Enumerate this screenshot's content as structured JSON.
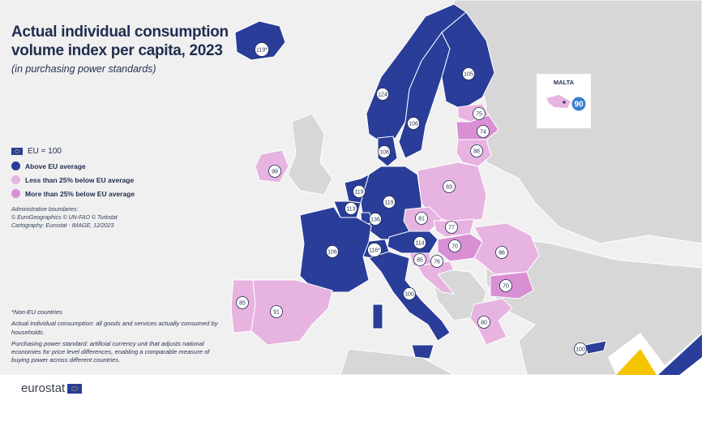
{
  "title_line1": "Actual individual consumption",
  "title_line2": "volume index per capita, 2023",
  "subtitle": "(in purchasing power standards)",
  "legend": {
    "eu_label": "EU = 100",
    "items": [
      {
        "label": "Above EU average",
        "color": "#2a3d99"
      },
      {
        "label": "Less than 25% below EU average",
        "color": "#e7b3e0"
      },
      {
        "label": "More than 25% below EU average",
        "color": "#d98fd4"
      }
    ]
  },
  "credits": {
    "line1": "Administrative boundaries:",
    "line2": "© EuroGeographics © UN-FAO © Turkstat",
    "line3": "Cartography: Eurostat - IMAGE, 12/2023"
  },
  "notes": {
    "n1": "*Non-EU countries",
    "n2": "Actual individual consumption: all goods and services actually consumed by households.",
    "n3": "Purchasing power standard: artificial currency unit that adjusts national economies for price level differences, enabling a comparable measure of buying power across different countries."
  },
  "inset": {
    "label": "MALTA",
    "value": "90"
  },
  "brand": "eurostat",
  "colors": {
    "above": "#2a3d99",
    "below_less": "#e7b3e0",
    "below_more": "#d98fd4",
    "non_eu": "#d7d7d7",
    "sea": "#f0f0f0"
  },
  "countries": [
    {
      "name": "Iceland",
      "value": "119*",
      "class": "above"
    },
    {
      "name": "Norway",
      "value": "124",
      "class": "above"
    },
    {
      "name": "Sweden",
      "value": "106",
      "class": "above"
    },
    {
      "name": "Finland",
      "value": "105",
      "class": "above"
    },
    {
      "name": "Estonia",
      "value": "75",
      "class": "below_less"
    },
    {
      "name": "Latvia",
      "value": "74",
      "class": "below_more"
    },
    {
      "name": "Lithuania",
      "value": "88",
      "class": "below_less"
    },
    {
      "name": "Denmark",
      "value": "108",
      "class": "above"
    },
    {
      "name": "Ireland",
      "value": "99",
      "class": "below_less"
    },
    {
      "name": "Netherlands",
      "value": "119",
      "class": "above"
    },
    {
      "name": "Belgium",
      "value": "113",
      "class": "above"
    },
    {
      "name": "Luxembourg",
      "value": "136",
      "class": "above"
    },
    {
      "name": "Germany",
      "value": "119",
      "class": "above"
    },
    {
      "name": "Poland",
      "value": "83",
      "class": "below_less"
    },
    {
      "name": "Czechia",
      "value": "81",
      "class": "below_less"
    },
    {
      "name": "Slovakia",
      "value": "77",
      "class": "below_less"
    },
    {
      "name": "Austria",
      "value": "114",
      "class": "above"
    },
    {
      "name": "Switzerland",
      "value": "116*",
      "class": "above"
    },
    {
      "name": "France",
      "value": "106",
      "class": "above"
    },
    {
      "name": "Hungary",
      "value": "70",
      "class": "below_more"
    },
    {
      "name": "Romania",
      "value": "86",
      "class": "below_less"
    },
    {
      "name": "Slovenia",
      "value": "85",
      "class": "below_less"
    },
    {
      "name": "Croatia",
      "value": "76",
      "class": "below_less"
    },
    {
      "name": "Bulgaria",
      "value": "70",
      "class": "below_more"
    },
    {
      "name": "Italy",
      "value": "100",
      "class": "above"
    },
    {
      "name": "Portugal",
      "value": "85",
      "class": "below_less"
    },
    {
      "name": "Spain",
      "value": "91",
      "class": "below_less"
    },
    {
      "name": "Greece",
      "value": "80",
      "class": "below_less"
    },
    {
      "name": "Cyprus",
      "value": "100",
      "class": "above"
    }
  ]
}
